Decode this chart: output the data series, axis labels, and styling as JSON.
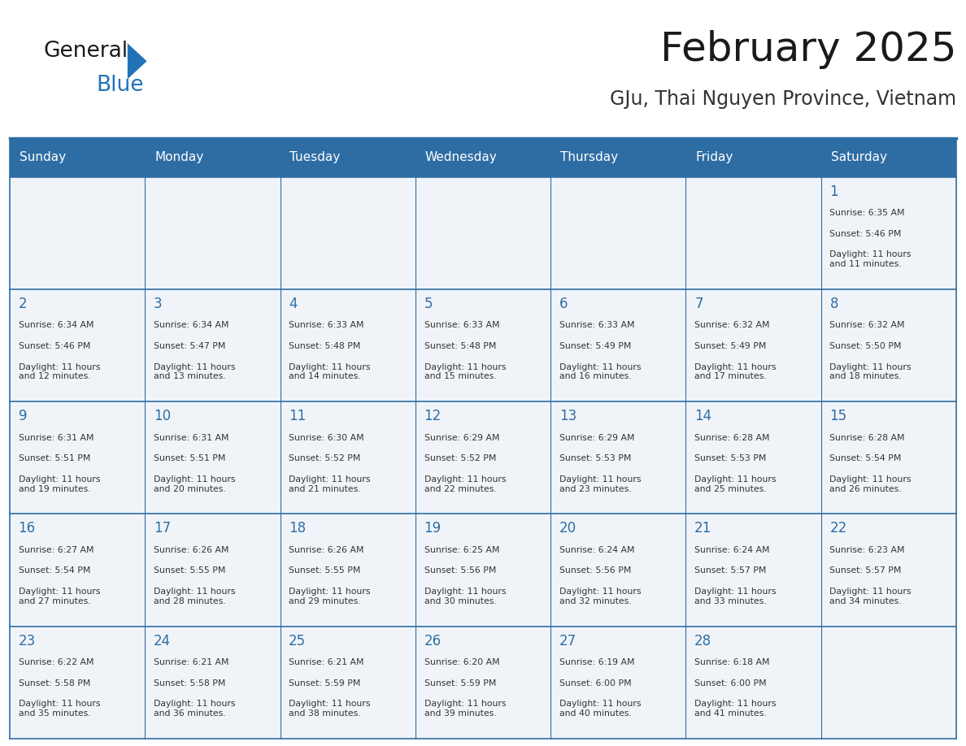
{
  "title": "February 2025",
  "subtitle": "GJu, Thai Nguyen Province, Vietnam",
  "days_of_week": [
    "Sunday",
    "Monday",
    "Tuesday",
    "Wednesday",
    "Thursday",
    "Friday",
    "Saturday"
  ],
  "header_bg": "#2E6DA4",
  "header_text": "#FFFFFF",
  "cell_bg": "#F0F4F8",
  "border_color": "#2E6DA4",
  "text_color": "#333333",
  "day_num_color": "#2E6DA4",
  "logo_blue_color": "#2272B8",
  "calendar_data": [
    [
      null,
      null,
      null,
      null,
      null,
      null,
      {
        "day": 1,
        "sunrise": "6:35 AM",
        "sunset": "5:46 PM",
        "daylight": "11 hours\nand 11 minutes."
      }
    ],
    [
      {
        "day": 2,
        "sunrise": "6:34 AM",
        "sunset": "5:46 PM",
        "daylight": "11 hours\nand 12 minutes."
      },
      {
        "day": 3,
        "sunrise": "6:34 AM",
        "sunset": "5:47 PM",
        "daylight": "11 hours\nand 13 minutes."
      },
      {
        "day": 4,
        "sunrise": "6:33 AM",
        "sunset": "5:48 PM",
        "daylight": "11 hours\nand 14 minutes."
      },
      {
        "day": 5,
        "sunrise": "6:33 AM",
        "sunset": "5:48 PM",
        "daylight": "11 hours\nand 15 minutes."
      },
      {
        "day": 6,
        "sunrise": "6:33 AM",
        "sunset": "5:49 PM",
        "daylight": "11 hours\nand 16 minutes."
      },
      {
        "day": 7,
        "sunrise": "6:32 AM",
        "sunset": "5:49 PM",
        "daylight": "11 hours\nand 17 minutes."
      },
      {
        "day": 8,
        "sunrise": "6:32 AM",
        "sunset": "5:50 PM",
        "daylight": "11 hours\nand 18 minutes."
      }
    ],
    [
      {
        "day": 9,
        "sunrise": "6:31 AM",
        "sunset": "5:51 PM",
        "daylight": "11 hours\nand 19 minutes."
      },
      {
        "day": 10,
        "sunrise": "6:31 AM",
        "sunset": "5:51 PM",
        "daylight": "11 hours\nand 20 minutes."
      },
      {
        "day": 11,
        "sunrise": "6:30 AM",
        "sunset": "5:52 PM",
        "daylight": "11 hours\nand 21 minutes."
      },
      {
        "day": 12,
        "sunrise": "6:29 AM",
        "sunset": "5:52 PM",
        "daylight": "11 hours\nand 22 minutes."
      },
      {
        "day": 13,
        "sunrise": "6:29 AM",
        "sunset": "5:53 PM",
        "daylight": "11 hours\nand 23 minutes."
      },
      {
        "day": 14,
        "sunrise": "6:28 AM",
        "sunset": "5:53 PM",
        "daylight": "11 hours\nand 25 minutes."
      },
      {
        "day": 15,
        "sunrise": "6:28 AM",
        "sunset": "5:54 PM",
        "daylight": "11 hours\nand 26 minutes."
      }
    ],
    [
      {
        "day": 16,
        "sunrise": "6:27 AM",
        "sunset": "5:54 PM",
        "daylight": "11 hours\nand 27 minutes."
      },
      {
        "day": 17,
        "sunrise": "6:26 AM",
        "sunset": "5:55 PM",
        "daylight": "11 hours\nand 28 minutes."
      },
      {
        "day": 18,
        "sunrise": "6:26 AM",
        "sunset": "5:55 PM",
        "daylight": "11 hours\nand 29 minutes."
      },
      {
        "day": 19,
        "sunrise": "6:25 AM",
        "sunset": "5:56 PM",
        "daylight": "11 hours\nand 30 minutes."
      },
      {
        "day": 20,
        "sunrise": "6:24 AM",
        "sunset": "5:56 PM",
        "daylight": "11 hours\nand 32 minutes."
      },
      {
        "day": 21,
        "sunrise": "6:24 AM",
        "sunset": "5:57 PM",
        "daylight": "11 hours\nand 33 minutes."
      },
      {
        "day": 22,
        "sunrise": "6:23 AM",
        "sunset": "5:57 PM",
        "daylight": "11 hours\nand 34 minutes."
      }
    ],
    [
      {
        "day": 23,
        "sunrise": "6:22 AM",
        "sunset": "5:58 PM",
        "daylight": "11 hours\nand 35 minutes."
      },
      {
        "day": 24,
        "sunrise": "6:21 AM",
        "sunset": "5:58 PM",
        "daylight": "11 hours\nand 36 minutes."
      },
      {
        "day": 25,
        "sunrise": "6:21 AM",
        "sunset": "5:59 PM",
        "daylight": "11 hours\nand 38 minutes."
      },
      {
        "day": 26,
        "sunrise": "6:20 AM",
        "sunset": "5:59 PM",
        "daylight": "11 hours\nand 39 minutes."
      },
      {
        "day": 27,
        "sunrise": "6:19 AM",
        "sunset": "6:00 PM",
        "daylight": "11 hours\nand 40 minutes."
      },
      {
        "day": 28,
        "sunrise": "6:18 AM",
        "sunset": "6:00 PM",
        "daylight": "11 hours\nand 41 minutes."
      },
      null
    ]
  ],
  "fig_width": 11.88,
  "fig_height": 9.18,
  "dpi": 100
}
